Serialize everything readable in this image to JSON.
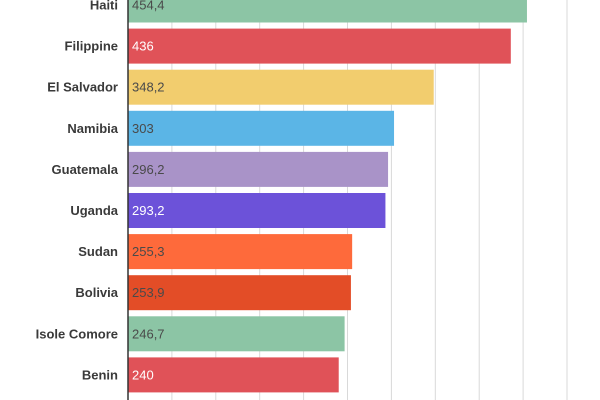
{
  "chart_data": {
    "type": "bar",
    "orientation": "horizontal",
    "categories": [
      "Haiti",
      "Filippine",
      "El Salvador",
      "Namibia",
      "Guatemala",
      "Uganda",
      "Sudan",
      "Bolivia",
      "Isole Comore",
      "Benin"
    ],
    "values": [
      454.4,
      436,
      348.2,
      303,
      296.2,
      293.2,
      255.3,
      253.9,
      246.7,
      240
    ],
    "value_labels": [
      "454,4",
      "436",
      "348,2",
      "303",
      "296,2",
      "293,2",
      "255,3",
      "253,9",
      "246,7",
      "240"
    ],
    "colors": [
      "#8cc5a5",
      "#e05258",
      "#f2cd6e",
      "#5bb5e6",
      "#a993c8",
      "#6c52d9",
      "#fe6a3b",
      "#e34d27",
      "#8cc5a5",
      "#e05258"
    ],
    "label_dark": [
      true,
      false,
      true,
      true,
      true,
      false,
      true,
      true,
      true,
      false
    ],
    "xlim": [
      0,
      500
    ],
    "grid": true,
    "title": "",
    "xlabel": "",
    "ylabel": ""
  }
}
